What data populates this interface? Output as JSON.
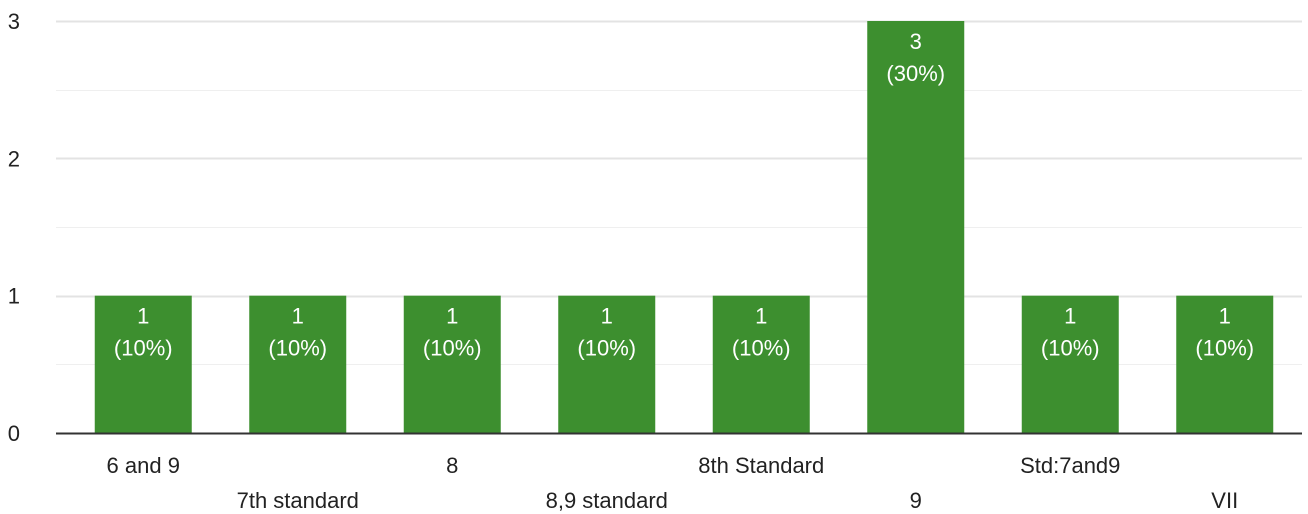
{
  "chart_data": {
    "type": "bar",
    "categories": [
      "6 and 9",
      "7th standard",
      "8",
      "8,9 standard",
      "8th Standard",
      "9",
      "Std:7and9",
      "VII"
    ],
    "values": [
      1,
      1,
      1,
      1,
      1,
      3,
      1,
      1
    ],
    "data_labels": [
      "1",
      "1",
      "1",
      "1",
      "1",
      "3",
      "1",
      "1"
    ],
    "percent_labels": [
      "(10%)",
      "(10%)",
      "(10%)",
      "(10%)",
      "(10%)",
      "(30%)",
      "(10%)",
      "(10%)"
    ],
    "yticks": [
      "0",
      "1",
      "2",
      "3"
    ],
    "ylim": [
      0,
      3
    ],
    "title": "",
    "xlabel": "",
    "ylabel": "",
    "grid": true,
    "legend": "none",
    "colors": {
      "bar": "#3d8f2f",
      "grid": "#e8e8e8",
      "axis": "#333333",
      "label": "#ffffff"
    }
  }
}
